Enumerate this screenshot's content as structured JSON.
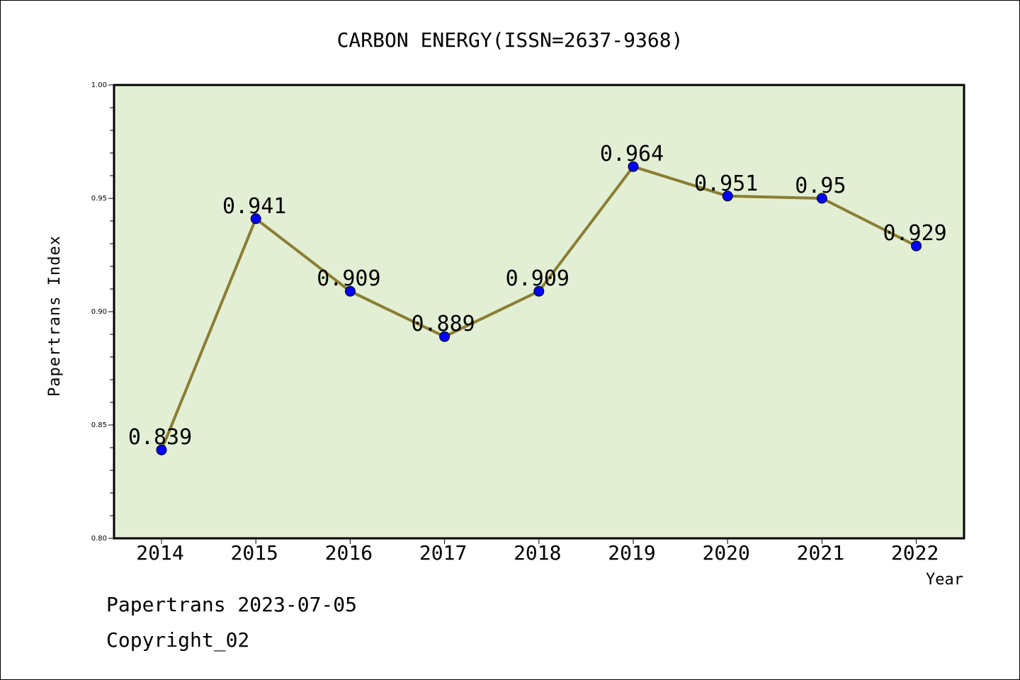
{
  "chart_data": {
    "type": "line",
    "title": "CARBON ENERGY(ISSN=2637-9368)",
    "xlabel": "Year",
    "ylabel": "Papertrans Index",
    "categories": [
      "2014",
      "2015",
      "2016",
      "2017",
      "2018",
      "2019",
      "2020",
      "2021",
      "2022"
    ],
    "values": [
      0.839,
      0.941,
      0.909,
      0.889,
      0.909,
      0.964,
      0.951,
      0.95,
      0.929
    ],
    "data_labels": [
      "0.839",
      "0.941",
      "0.909",
      "0.889",
      "0.909",
      "0.964",
      "0.951",
      "0.95",
      "0.929"
    ],
    "ylim": [
      0.8,
      1.0
    ],
    "yticks": [
      "0.80",
      "0.85",
      "0.90",
      "0.95",
      "1.00"
    ],
    "grid": false,
    "colors": {
      "plot_background": "#e2efd5",
      "line": "#8b7d32",
      "marker": "#0000ff"
    }
  },
  "footer": {
    "line1": "Papertrans 2023-07-05",
    "line2": "Copyright_02"
  }
}
